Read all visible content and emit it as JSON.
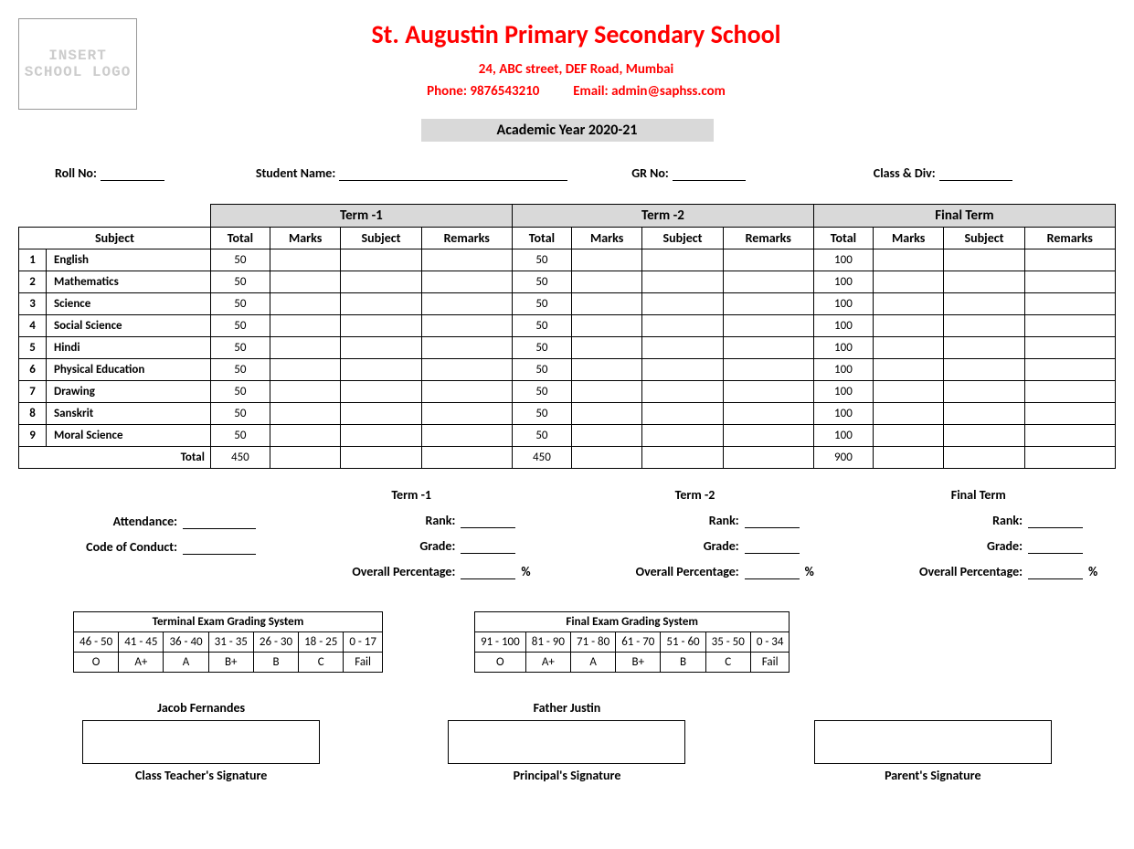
{
  "logo_placeholder": "INSERT SCHOOL LOGO",
  "school_name": "St. Augustin Primary Secondary School",
  "address": "24, ABC street, DEF Road, Mumbai",
  "phone_label": "Phone:",
  "phone": "9876543210",
  "email_label": "Email:",
  "email": "admin@saphss.com",
  "academic_year": "Academic Year 2020-21",
  "info": {
    "roll_label": "Roll No:",
    "name_label": "Student Name:",
    "gr_label": "GR No:",
    "class_label": "Class & Div:"
  },
  "table": {
    "subject_header": "Subject",
    "terms": [
      "Term -1",
      "Term -2",
      "Final Term"
    ],
    "cols": [
      "Total",
      "Marks",
      "Subject",
      "Remarks"
    ],
    "subjects": [
      {
        "n": "1",
        "name": "English",
        "t1": "50",
        "t2": "50",
        "ft": "100"
      },
      {
        "n": "2",
        "name": "Mathematics",
        "t1": "50",
        "t2": "50",
        "ft": "100"
      },
      {
        "n": "3",
        "name": "Science",
        "t1": "50",
        "t2": "50",
        "ft": "100"
      },
      {
        "n": "4",
        "name": "Social Science",
        "t1": "50",
        "t2": "50",
        "ft": "100"
      },
      {
        "n": "5",
        "name": "Hindi",
        "t1": "50",
        "t2": "50",
        "ft": "100"
      },
      {
        "n": "6",
        "name": "Physical Education",
        "t1": "50",
        "t2": "50",
        "ft": "100"
      },
      {
        "n": "7",
        "name": "Drawing",
        "t1": "50",
        "t2": "50",
        "ft": "100"
      },
      {
        "n": "8",
        "name": "Sanskrit",
        "t1": "50",
        "t2": "50",
        "ft": "100"
      },
      {
        "n": "9",
        "name": "Moral Science",
        "t1": "50",
        "t2": "50",
        "ft": "100"
      }
    ],
    "total_label": "Total",
    "totals": {
      "t1": "450",
      "t2": "450",
      "ft": "900"
    }
  },
  "summary": {
    "attendance_label": "Attendance:",
    "conduct_label": "Code of Conduct:",
    "rank_label": "Rank:",
    "grade_label": "Grade:",
    "overall_label": "Overall Percentage:",
    "pct_symbol": "%",
    "terms": [
      "Term -1",
      "Term -2",
      "Final Term"
    ]
  },
  "grading": {
    "terminal": {
      "title": "Terminal Exam Grading System",
      "ranges": [
        "46 - 50",
        "41 - 45",
        "36 - 40",
        "31 - 35",
        "26 - 30",
        "18 - 25",
        "0 - 17"
      ],
      "grades": [
        "O",
        "A+",
        "A",
        "B+",
        "B",
        "C",
        "Fail"
      ]
    },
    "final": {
      "title": "Final Exam Grading System",
      "ranges": [
        "91 - 100",
        "81 - 90",
        "71 - 80",
        "61 - 70",
        "51 - 60",
        "35 - 50",
        "0 - 34"
      ],
      "grades": [
        "O",
        "A+",
        "A",
        "B+",
        "B",
        "C",
        "Fail"
      ]
    }
  },
  "signatures": {
    "teacher_name": "Jacob Fernandes",
    "teacher_label": "Class Teacher's Signature",
    "principal_name": "Father Justin",
    "principal_label": "Principal's Signature",
    "parent_name": "",
    "parent_label": "Parent's Signature"
  }
}
